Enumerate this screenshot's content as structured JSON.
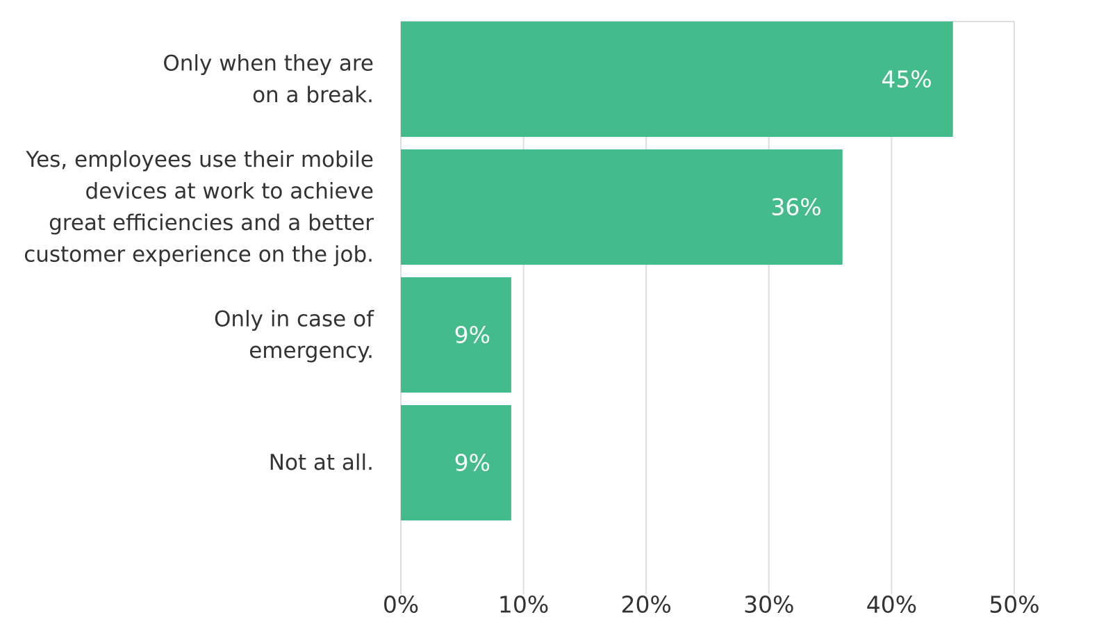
{
  "chart_data": {
    "type": "bar",
    "orientation": "horizontal",
    "categories": [
      [
        "Only when they are",
        "on a break."
      ],
      [
        "Yes, employees use their mobile",
        "devices at work to achieve",
        "great efficiencies and a better",
        "customer experience on the job."
      ],
      [
        "Only in case of",
        "emergency."
      ],
      [
        "Not at all."
      ]
    ],
    "values": [
      45,
      36,
      9,
      9
    ],
    "data_labels": [
      "45%",
      "36%",
      "9%",
      "9%"
    ],
    "xlim": [
      0,
      50
    ],
    "xticks": [
      0,
      10,
      20,
      30,
      40,
      50
    ],
    "xtick_labels": [
      "0%",
      "10%",
      "20%",
      "30%",
      "40%",
      "50%"
    ],
    "grid": true,
    "bar_color": "#43bb8a",
    "label_color": "#ffffff",
    "text_color": "#333333",
    "grid_color": "#dddddd"
  }
}
